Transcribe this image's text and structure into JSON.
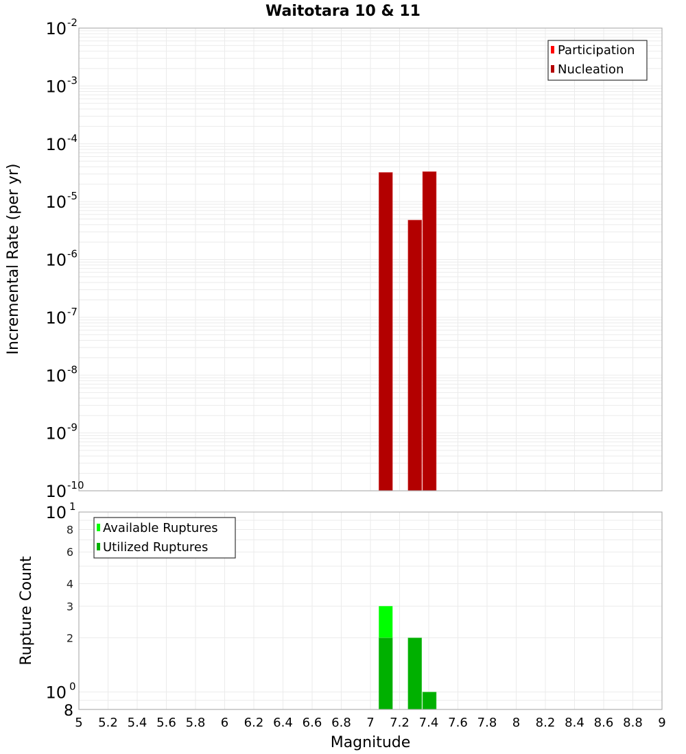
{
  "chart_data": [
    {
      "type": "bar",
      "title": "Waitotara 10 & 11",
      "xlabel": "Magnitude",
      "ylabel": "Incremental Rate (per yr)",
      "yscale": "log",
      "ylim": [
        1e-10,
        0.01
      ],
      "xlim": [
        5,
        9
      ],
      "y_ticks": [
        "10^-2",
        "10^-3",
        "10^-4",
        "10^-5",
        "10^-6",
        "10^-7",
        "10^-8",
        "10^-9",
        "10^-10"
      ],
      "grid": true,
      "legend_position": "top-right",
      "categories": [
        7.1,
        7.3,
        7.4
      ],
      "series": [
        {
          "name": "Participation",
          "color": "#ff0000",
          "values": [
            3.2e-05,
            4.8e-06,
            3.3e-05
          ]
        },
        {
          "name": "Nucleation",
          "color": "#b30000",
          "values": [
            3.2e-05,
            4.8e-06,
            3.3e-05
          ]
        }
      ]
    },
    {
      "type": "bar",
      "title": "",
      "xlabel": "Magnitude",
      "ylabel": "Rupture Count",
      "yscale": "log",
      "ylim": [
        0.8,
        10
      ],
      "xlim": [
        5,
        9
      ],
      "y_ticks": [
        "10^1",
        "8",
        "6",
        "4",
        "3",
        "2",
        "10^0",
        "8"
      ],
      "grid": true,
      "legend_position": "top-left",
      "categories": [
        7.1,
        7.3,
        7.4
      ],
      "series": [
        {
          "name": "Available Ruptures",
          "color": "#00ff00",
          "values": [
            3,
            2,
            1
          ]
        },
        {
          "name": "Utilized Ruptures",
          "color": "#00b000",
          "values": [
            2,
            2,
            1
          ]
        }
      ]
    }
  ],
  "header": {
    "title": "Waitotara 10 & 11"
  },
  "x_axis": {
    "label": "Magnitude",
    "ticks": [
      "5",
      "5.2",
      "5.4",
      "5.6",
      "5.8",
      "6",
      "6.2",
      "6.4",
      "6.6",
      "6.8",
      "7",
      "7.2",
      "7.4",
      "7.6",
      "7.8",
      "8",
      "8.2",
      "8.4",
      "8.6",
      "8.8",
      "9"
    ]
  },
  "top_plot": {
    "ylabel": "Incremental Rate (per yr)",
    "legend": [
      {
        "label": "Participation",
        "color": "#ff0000"
      },
      {
        "label": "Nucleation",
        "color": "#b30000"
      }
    ],
    "y_ticks": [
      {
        "base": "10",
        "exp": "-2"
      },
      {
        "base": "10",
        "exp": "-3"
      },
      {
        "base": "10",
        "exp": "-4"
      },
      {
        "base": "10",
        "exp": "-5"
      },
      {
        "base": "10",
        "exp": "-6"
      },
      {
        "base": "10",
        "exp": "-7"
      },
      {
        "base": "10",
        "exp": "-8"
      },
      {
        "base": "10",
        "exp": "-9"
      },
      {
        "base": "10",
        "exp": "-10"
      }
    ]
  },
  "bottom_plot": {
    "ylabel": "Rupture Count",
    "legend": [
      {
        "label": "Available Ruptures",
        "color": "#00ff00"
      },
      {
        "label": "Utilized Ruptures",
        "color": "#00b000"
      }
    ],
    "y_ticks_major": [
      {
        "base": "10",
        "exp": "1"
      },
      {
        "base": "10",
        "exp": "0"
      }
    ],
    "y_ticks_minor": [
      "8",
      "6",
      "4",
      "3",
      "2",
      "8"
    ]
  }
}
